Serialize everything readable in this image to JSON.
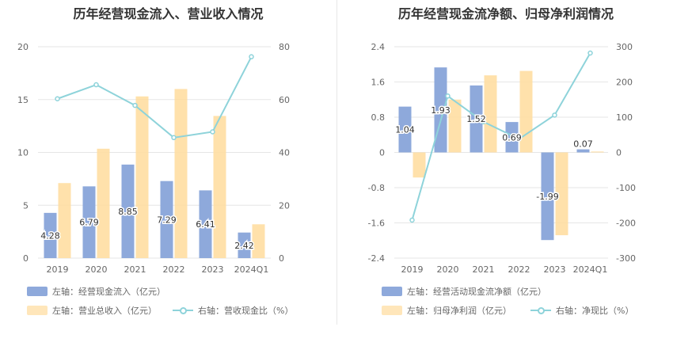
{
  "colors": {
    "bar1": "#8ea9db",
    "bar2": "#ffdc9c",
    "line": "#8ed3da",
    "grid": "#e6e6e6"
  },
  "left_panel": {
    "title": "历年经营现金流入、营业收入情况",
    "legend": {
      "bar1": "左轴：经营现金流入（亿元）",
      "bar2": "左轴：营业总收入（亿元）",
      "line": "右轴：营收现金比（%）"
    }
  },
  "right_panel": {
    "title": "历年经营现金流净额、归母净利润情况",
    "legend": {
      "bar1": "左轴：经营活动现金流净额（亿元）",
      "bar2": "左轴：归母净利润（亿元）",
      "line": "右轴：净现比（%）"
    }
  },
  "chart_data": [
    {
      "type": "bar",
      "title": "历年经营现金流入、营业收入情况",
      "categories": [
        "2019",
        "2020",
        "2021",
        "2022",
        "2023",
        "2024Q1"
      ],
      "series": [
        {
          "name": "左轴：经营现金流入（亿元）",
          "axis": "left",
          "type": "bar",
          "values": [
            4.28,
            6.79,
            8.85,
            7.29,
            6.41,
            2.42
          ],
          "data_labels": [
            "4.28",
            "6.79",
            "8.85",
            "7.29",
            "6.41",
            "2.42"
          ]
        },
        {
          "name": "左轴：营业总收入（亿元）",
          "axis": "left",
          "type": "bar",
          "values": [
            7.1,
            10.35,
            15.3,
            16.0,
            13.45,
            3.2
          ]
        },
        {
          "name": "右轴：营收现金比（%）",
          "axis": "right",
          "type": "line",
          "values": [
            60.3,
            65.6,
            57.8,
            45.6,
            47.8,
            76.2
          ]
        }
      ],
      "y_left": {
        "min": 0,
        "max": 20,
        "ticks": [
          "0",
          "5",
          "10",
          "15",
          "20"
        ]
      },
      "y_right": {
        "min": 0,
        "max": 80,
        "ticks": [
          "0",
          "20",
          "40",
          "60",
          "80"
        ]
      },
      "grid": true,
      "legend_position": "bottom"
    },
    {
      "type": "bar",
      "title": "历年经营现金流净额、归母净利润情况",
      "categories": [
        "2019",
        "2020",
        "2021",
        "2022",
        "2023",
        "2024Q1"
      ],
      "series": [
        {
          "name": "左轴：经营活动现金流净额（亿元）",
          "axis": "left",
          "type": "bar",
          "values": [
            1.04,
            1.93,
            1.52,
            0.69,
            -1.99,
            0.07
          ],
          "data_labels": [
            "1.04",
            "1.93",
            "1.52",
            "0.69",
            "-1.99",
            "0.07"
          ]
        },
        {
          "name": "左轴：归母净利润（亿元）",
          "axis": "left",
          "type": "bar",
          "values": [
            -0.57,
            1.2,
            1.75,
            1.85,
            -1.88,
            0.02
          ]
        },
        {
          "name": "右轴：净现比（%）",
          "axis": "right",
          "type": "line",
          "values": [
            -192,
            160,
            87,
            38,
            106,
            282
          ]
        }
      ],
      "y_left": {
        "min": -2.4,
        "max": 2.4,
        "ticks": [
          "2.4",
          "1.6",
          "0.8",
          "0",
          "-0.8",
          "-1.6",
          "-2.4"
        ]
      },
      "y_right": {
        "min": -300,
        "max": 300,
        "ticks": [
          "300",
          "200",
          "100",
          "0",
          "-100",
          "-200",
          "-300"
        ]
      },
      "grid": true,
      "legend_position": "bottom"
    }
  ]
}
